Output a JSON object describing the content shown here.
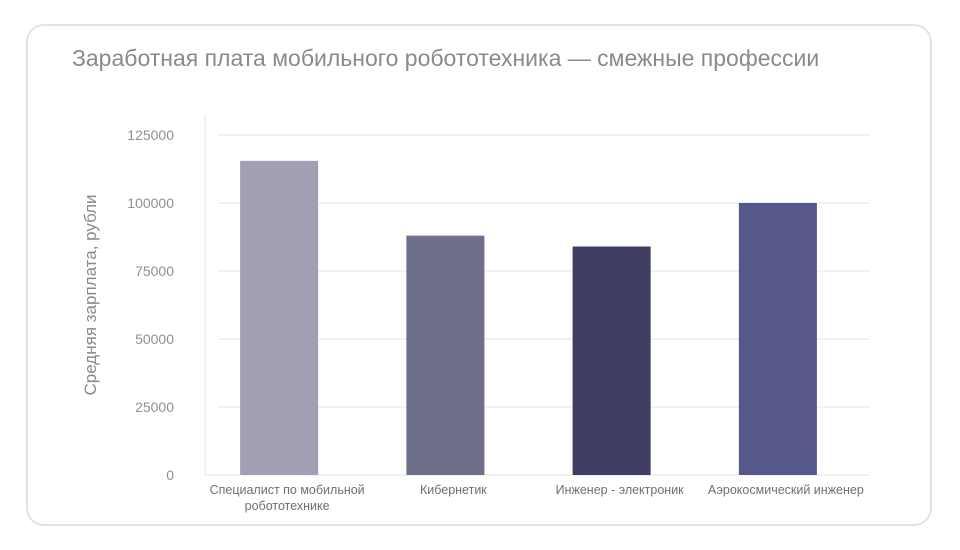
{
  "chart_data": {
    "type": "bar",
    "title": "Заработная плата мобильного робототехника — смежные профессии",
    "xlabel": "",
    "ylabel": "Средняя зарплата, рубли",
    "ylim": [
      0,
      125000
    ],
    "yticks": [
      0,
      25000,
      50000,
      75000,
      100000,
      125000
    ],
    "grid": true,
    "categories": [
      [
        "Специалист по мобильной",
        "робототехнике"
      ],
      [
        "Кибернетик"
      ],
      [
        "Инженер - электроник"
      ],
      [
        "Аэрокосмический инженер"
      ]
    ],
    "values": [
      115500,
      88000,
      84000,
      100000
    ],
    "colors": [
      "#a19fb3",
      "#6e7089",
      "#3f3e62",
      "#555889"
    ]
  }
}
